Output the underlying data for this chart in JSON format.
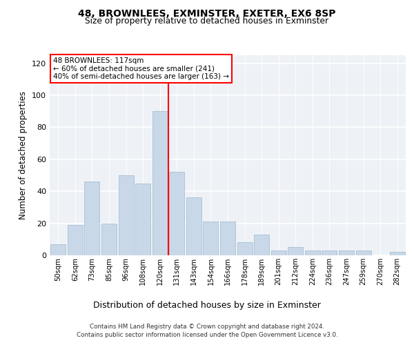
{
  "title1": "48, BROWNLEES, EXMINSTER, EXETER, EX6 8SP",
  "title2": "Size of property relative to detached houses in Exminster",
  "xlabel": "Distribution of detached houses by size in Exminster",
  "ylabel": "Number of detached properties",
  "categories": [
    "50sqm",
    "62sqm",
    "73sqm",
    "85sqm",
    "96sqm",
    "108sqm",
    "120sqm",
    "131sqm",
    "143sqm",
    "154sqm",
    "166sqm",
    "178sqm",
    "189sqm",
    "201sqm",
    "212sqm",
    "224sqm",
    "236sqm",
    "247sqm",
    "259sqm",
    "270sqm",
    "282sqm"
  ],
  "values": [
    7,
    19,
    46,
    20,
    50,
    45,
    90,
    52,
    36,
    21,
    21,
    8,
    13,
    3,
    5,
    3,
    3,
    3,
    3,
    0,
    2
  ],
  "bar_color": "#c8d8e8",
  "bar_edge_color": "#a0b8cc",
  "vline_x": 6.5,
  "vline_color": "red",
  "annotation_line1": "48 BROWNLEES: 117sqm",
  "annotation_line2": "← 60% of detached houses are smaller (241)",
  "annotation_line3": "40% of semi-detached houses are larger (163) →",
  "annotation_box_color": "white",
  "annotation_box_edge": "red",
  "ylim": [
    0,
    125
  ],
  "yticks": [
    0,
    20,
    40,
    60,
    80,
    100,
    120
  ],
  "footer1": "Contains HM Land Registry data © Crown copyright and database right 2024.",
  "footer2": "Contains public sector information licensed under the Open Government Licence v3.0.",
  "bg_color": "#eef2f7",
  "grid_color": "white"
}
